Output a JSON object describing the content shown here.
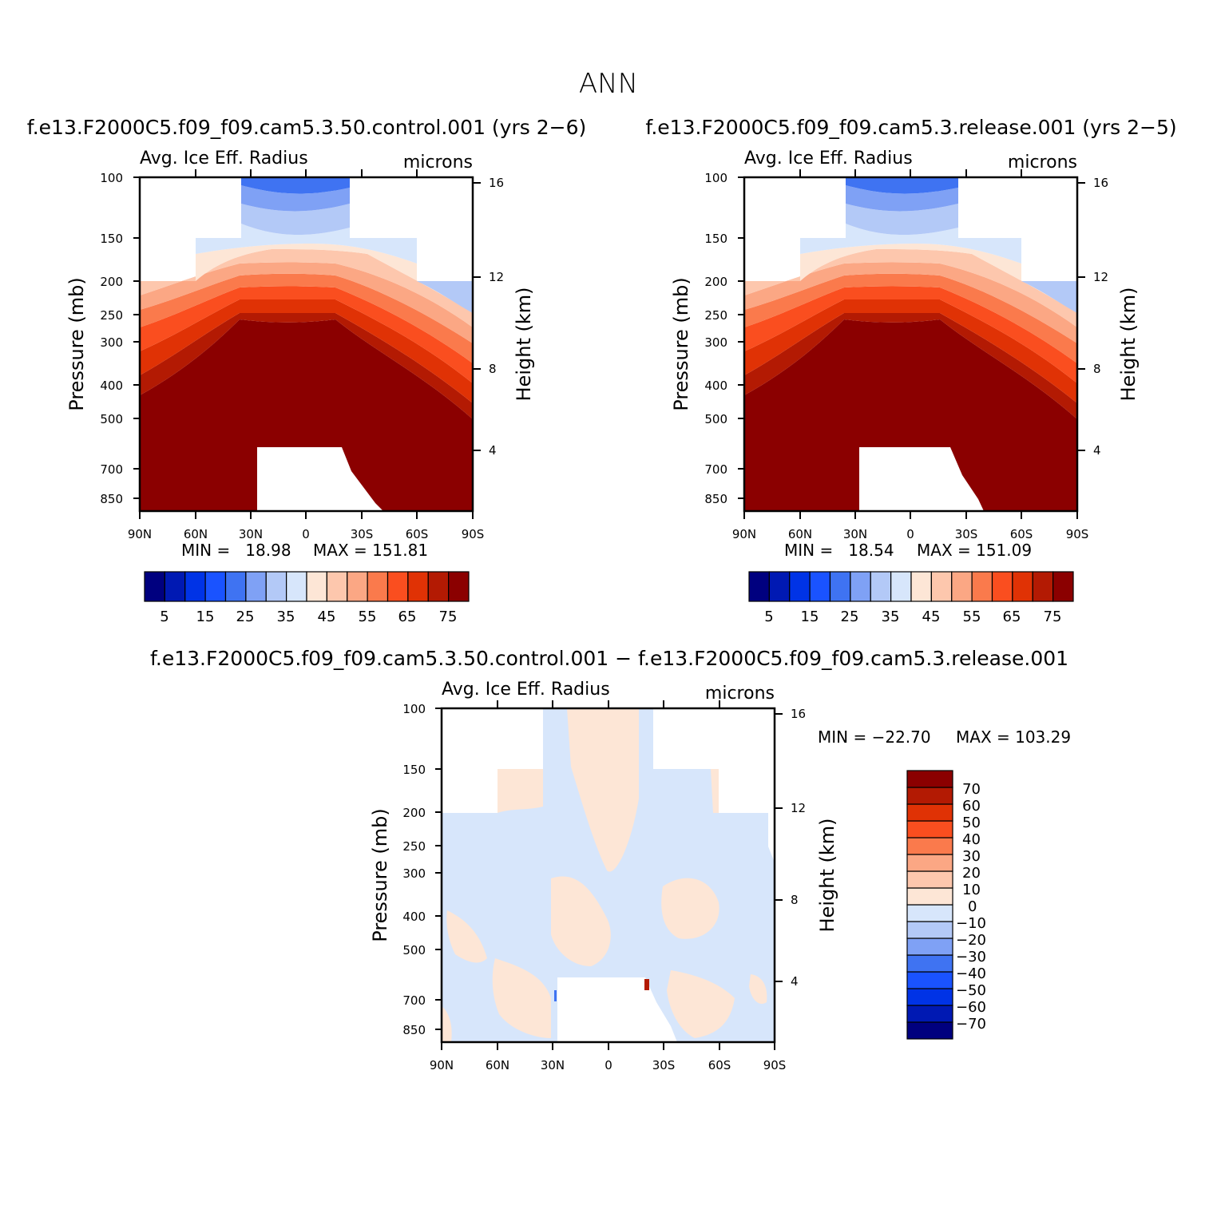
{
  "figure_title": "ANN",
  "diff_title": "f.e13.F2000C5.f09_f09.cam5.3.50.control.001 − f.e13.F2000C5.f09_f09.cam5.3.release.001",
  "colors": {
    "base_scale": [
      "#00007f",
      "#0019b3",
      "#0033e6",
      "#1a53ff",
      "#3f73f2",
      "#7fa1f5",
      "#b3c9f7",
      "#d7e6fb",
      "#fde6d6",
      "#fdc7ad",
      "#fba784",
      "#fa7a4c",
      "#fa4e1f",
      "#e03205",
      "#b31a03",
      "#8b0000"
    ],
    "diff_scale": [
      "#00007f",
      "#0019b3",
      "#0033e6",
      "#1a53ff",
      "#3f73f2",
      "#7fa1f5",
      "#b3c9f7",
      "#d7e6fb",
      "#fde6d6",
      "#fdc7ad",
      "#fba784",
      "#fa7a4c",
      "#fa4e1f",
      "#e03205",
      "#b31a03",
      "#8b0000"
    ]
  },
  "chart_data": [
    {
      "type": "heatmap",
      "title": "f.e13.F2000C5.f09_f09.cam5.3.50.control.001 (yrs 2−6)",
      "label_left": "Avg. Ice Eff. Radius",
      "label_right": "microns",
      "xlabel": "",
      "ylabel": "Pressure (mb)",
      "ylabel_right": "Height (km)",
      "x_ticks": [
        "90N",
        "60N",
        "30N",
        "0",
        "30S",
        "60S",
        "90S"
      ],
      "y_ticks": [
        "100",
        "150",
        "200",
        "250",
        "300",
        "400",
        "500",
        "700",
        "850"
      ],
      "y_ticks_right": [
        "16",
        "12",
        "8",
        "4"
      ],
      "ylim": [
        100,
        925
      ],
      "min_text": "MIN =   18.98",
      "max_text": "MAX = 151.81",
      "colorbar_labels": [
        "5",
        "15",
        "25",
        "35",
        "45",
        "55",
        "65",
        "75"
      ]
    },
    {
      "type": "heatmap",
      "title": "f.e13.F2000C5.f09_f09.cam5.3.release.001 (yrs 2−5)",
      "label_left": "Avg. Ice Eff. Radius",
      "label_right": "microns",
      "xlabel": "",
      "ylabel": "Pressure (mb)",
      "ylabel_right": "Height (km)",
      "x_ticks": [
        "90N",
        "60N",
        "30N",
        "0",
        "30S",
        "60S",
        "90S"
      ],
      "y_ticks": [
        "100",
        "150",
        "200",
        "250",
        "300",
        "400",
        "500",
        "700",
        "850"
      ],
      "y_ticks_right": [
        "16",
        "12",
        "8",
        "4"
      ],
      "ylim": [
        100,
        925
      ],
      "min_text": "MIN =   18.54",
      "max_text": "MAX = 151.09",
      "colorbar_labels": [
        "5",
        "15",
        "25",
        "35",
        "45",
        "55",
        "65",
        "75"
      ]
    },
    {
      "type": "heatmap",
      "title": "",
      "label_left": "Avg. Ice Eff. Radius",
      "label_right": "microns",
      "xlabel": "",
      "ylabel": "Pressure (mb)",
      "ylabel_right": "Height (km)",
      "x_ticks": [
        "90N",
        "60N",
        "30N",
        "0",
        "30S",
        "60S",
        "90S"
      ],
      "y_ticks": [
        "100",
        "150",
        "200",
        "250",
        "300",
        "400",
        "500",
        "700",
        "850"
      ],
      "y_ticks_right": [
        "16",
        "12",
        "8",
        "4"
      ],
      "ylim": [
        100,
        925
      ],
      "min_text": "MIN = −22.70",
      "max_text": "MAX = 103.29",
      "colorbar_labels": [
        "70",
        "60",
        "50",
        "40",
        "30",
        "20",
        "10",
        "0",
        "−10",
        "−20",
        "−30",
        "−40",
        "−50",
        "−60",
        "−70"
      ]
    }
  ]
}
